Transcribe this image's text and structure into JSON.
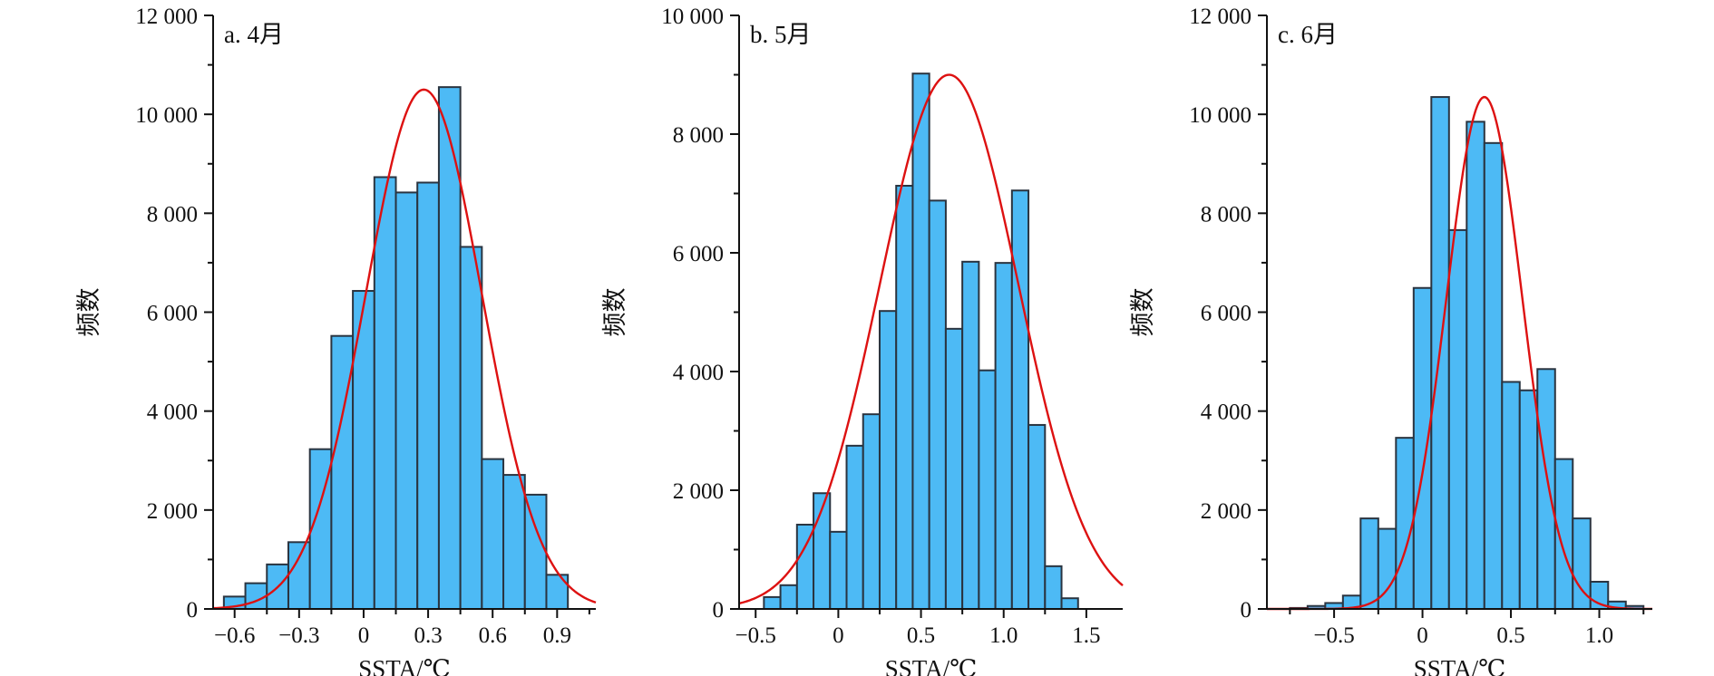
{
  "chart_data": [
    {
      "type": "bar",
      "title": "a. 4月",
      "xlabel": "SSTA/℃",
      "ylabel": "频数",
      "ylim": [
        0,
        12000
      ],
      "xlim": [
        -0.7,
        1.08
      ],
      "bin_width": 0.1,
      "bin_centers": [
        -0.6,
        -0.5,
        -0.4,
        -0.3,
        -0.2,
        -0.1,
        0.0,
        0.1,
        0.2,
        0.3,
        0.4,
        0.5,
        0.6,
        0.7,
        0.8,
        0.9
      ],
      "values": [
        250,
        520,
        900,
        1350,
        3230,
        5520,
        6430,
        8730,
        8420,
        8620,
        10550,
        7320,
        3030,
        2710,
        2310,
        690
      ],
      "xticks": [
        -0.6,
        -0.3,
        0,
        0.3,
        0.6,
        0.9
      ],
      "xtick_labels": [
        "−0.6",
        "−0.3",
        "0",
        "0.3",
        "0.6",
        "0.9"
      ],
      "yticks": [
        0,
        2000,
        4000,
        6000,
        8000,
        10000,
        12000
      ],
      "ytick_labels": [
        "0",
        "2 000",
        "4 000",
        "6 000",
        "8 000",
        "10 000",
        "12 000"
      ],
      "fit": {
        "type": "normal",
        "peak": 10500,
        "mean": 0.28,
        "sd": 0.27
      },
      "bar_color": "#4dbaf5",
      "fit_color": "#dd1111"
    },
    {
      "type": "bar",
      "title": "b. 5月",
      "xlabel": "SSTA/℃",
      "ylabel": "频数",
      "ylim": [
        0,
        10000
      ],
      "xlim": [
        -0.6,
        1.72
      ],
      "bin_width": 0.1,
      "bin_centers": [
        -0.4,
        -0.3,
        -0.2,
        -0.1,
        0.0,
        0.1,
        0.2,
        0.3,
        0.4,
        0.5,
        0.6,
        0.7,
        0.8,
        0.9,
        1.0,
        1.1,
        1.2,
        1.3,
        1.4,
        1.5
      ],
      "values": [
        200,
        400,
        1420,
        1950,
        1300,
        2750,
        3280,
        5020,
        7130,
        9020,
        6880,
        4720,
        5850,
        4020,
        5830,
        7050,
        3100,
        720,
        180,
        0
      ],
      "xticks": [
        -0.5,
        0,
        0.5,
        1.0,
        1.5
      ],
      "xtick_labels": [
        "−0.5",
        "0",
        "0.5",
        "1.0",
        "1.5"
      ],
      "yticks": [
        0,
        2000,
        4000,
        6000,
        8000,
        10000
      ],
      "ytick_labels": [
        "0",
        "2 000",
        "4 000",
        "6 000",
        "8 000",
        "10 000"
      ],
      "fit": {
        "type": "normal",
        "peak": 9000,
        "mean": 0.67,
        "sd": 0.42
      },
      "bar_color": "#4dbaf5",
      "fit_color": "#dd1111"
    },
    {
      "type": "bar",
      "title": "c. 6月",
      "xlabel": "SSTA/℃",
      "ylabel": "频数",
      "ylim": [
        0,
        12000
      ],
      "xlim": [
        -0.88,
        1.3
      ],
      "bin_width": 0.1,
      "bin_centers": [
        -0.7,
        -0.6,
        -0.5,
        -0.4,
        -0.3,
        -0.2,
        -0.1,
        0.0,
        0.1,
        0.2,
        0.3,
        0.4,
        0.5,
        0.6,
        0.7,
        0.8,
        0.9,
        1.0,
        1.1,
        1.2
      ],
      "values": [
        20,
        60,
        120,
        270,
        1830,
        1620,
        3460,
        6490,
        10350,
        7660,
        9850,
        9420,
        4590,
        4420,
        4850,
        3030,
        1830,
        550,
        150,
        60
      ],
      "xticks": [
        -0.5,
        0,
        0.5,
        1.0
      ],
      "xtick_labels": [
        "−0.5",
        "0",
        "0.5",
        "1.0"
      ],
      "yticks": [
        0,
        2000,
        4000,
        6000,
        8000,
        10000,
        12000
      ],
      "ytick_labels": [
        "0",
        "2 000",
        "4 000",
        "6 000",
        "8 000",
        "10 000",
        "12 000"
      ],
      "fit": {
        "type": "normal",
        "peak": 10350,
        "mean": 0.35,
        "sd": 0.215
      },
      "bar_color": "#4dbaf5",
      "fit_color": "#dd1111"
    }
  ]
}
